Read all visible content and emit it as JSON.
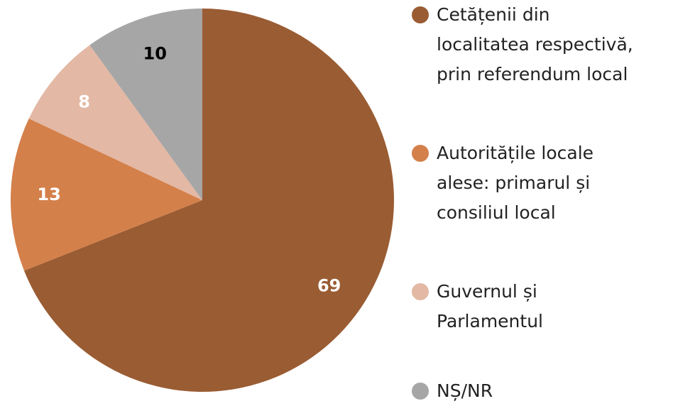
{
  "chart_data": {
    "type": "pie",
    "categories": [
      "Cetățenii din\nlocalitatea respectivă,\nprin referendum local",
      "Autoritățile locale\nalese: primarul și\nconsiliul local",
      "Guvernul și\nParlamentul",
      "NȘ/NR"
    ],
    "values": [
      69,
      13,
      8,
      10
    ],
    "colors": [
      "#9a5c33",
      "#d4804a",
      "#e3b8a4",
      "#a6a6a6"
    ],
    "label_colors": [
      "#ffffff",
      "#ffffff",
      "#ffffff",
      "#000000"
    ],
    "legend": "right"
  }
}
